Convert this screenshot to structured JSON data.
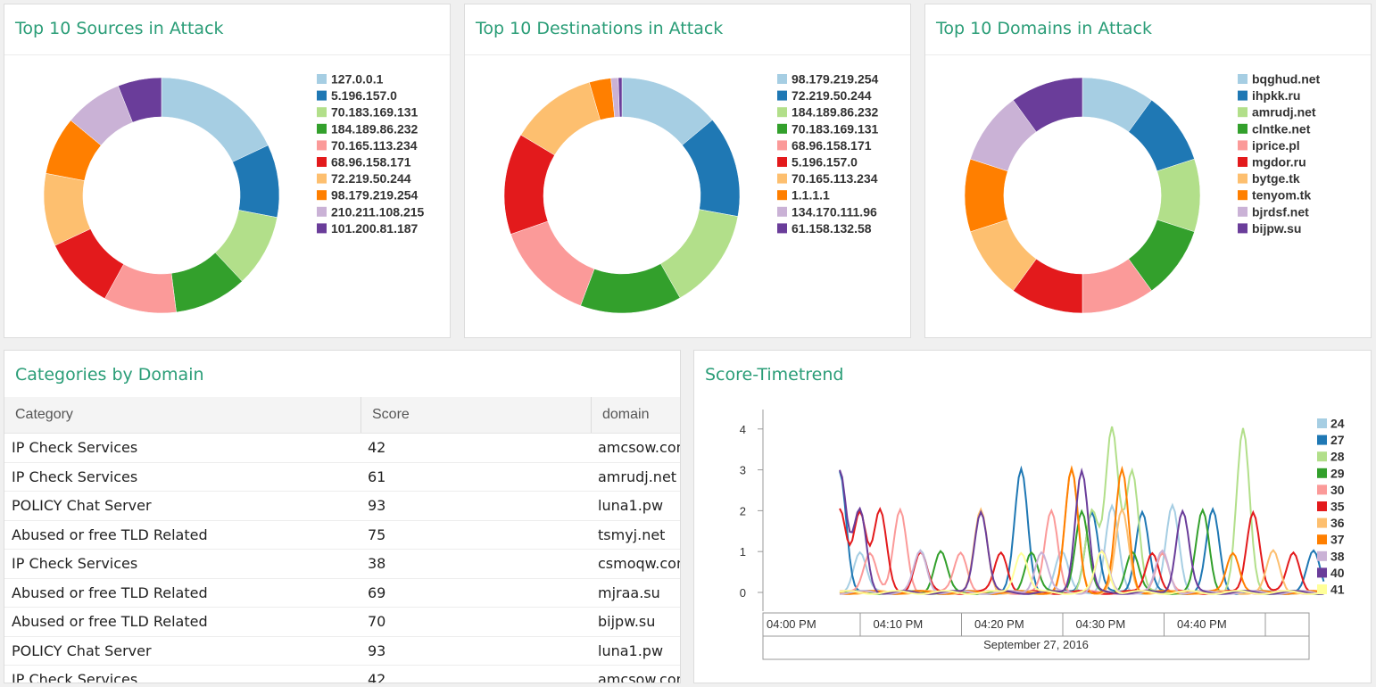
{
  "panels": {
    "sources": {
      "title": "Top 10 Sources in Attack"
    },
    "destinations": {
      "title": "Top 10 Destinations in Attack"
    },
    "domains": {
      "title": "Top 10 Domains in Attack"
    },
    "categories": {
      "title": "Categories by Domain"
    },
    "timetrend": {
      "title": "Score-Timetrend"
    }
  },
  "palette": [
    "#a6cee3",
    "#1f78b4",
    "#b2df8a",
    "#33a02c",
    "#fb9a99",
    "#e31a1c",
    "#fdbf6f",
    "#ff7f00",
    "#cab2d6",
    "#6a3d9a",
    "#ffff99"
  ],
  "chart_data": [
    {
      "type": "pie",
      "donut": true,
      "labels": [
        "127.0.0.1",
        "5.196.157.0",
        "70.183.169.131",
        "184.189.86.232",
        "70.165.113.234",
        "68.96.158.171",
        "72.219.50.244",
        "98.179.219.254",
        "210.211.108.215",
        "101.200.81.187"
      ],
      "values": [
        18,
        10,
        10,
        10,
        10,
        10,
        10,
        8,
        8,
        6
      ]
    },
    {
      "type": "pie",
      "donut": true,
      "labels": [
        "98.179.219.254",
        "72.219.50.244",
        "184.189.86.232",
        "70.183.169.131",
        "68.96.158.171",
        "5.196.157.0",
        "70.165.113.234",
        "1.1.1.1",
        "134.170.111.96",
        "61.158.132.58"
      ],
      "values": [
        14,
        14,
        14,
        14,
        14,
        14,
        12,
        3,
        1,
        0.5
      ]
    },
    {
      "type": "pie",
      "donut": true,
      "labels": [
        "bqghud.net",
        "ihpkk.ru",
        "amrudj.net",
        "clntke.net",
        "iprice.pl",
        "mgdor.ru",
        "bytge.tk",
        "tenyom.tk",
        "bjrdsf.net",
        "bijpw.su"
      ],
      "values": [
        10,
        10,
        10,
        10,
        10,
        10,
        10,
        10,
        10,
        10
      ]
    },
    {
      "type": "line",
      "x_ticks": [
        "04:00 PM",
        "04:10 PM",
        "04:20 PM",
        "04:30 PM",
        "04:40 PM"
      ],
      "x_date": "September 27, 2016",
      "y_ticks": [
        "0",
        "1",
        "2",
        "3",
        "4"
      ],
      "ylim": [
        0,
        4
      ],
      "series": [
        {
          "name": "24",
          "points": [
            [
              2,
              1
            ],
            [
              8,
              1
            ],
            [
              22,
              1
            ],
            [
              27,
              2.1
            ],
            [
              33,
              2.1
            ]
          ]
        },
        {
          "name": "27",
          "points": [
            [
              0,
              3
            ],
            [
              18,
              3
            ],
            [
              25,
              2
            ],
            [
              30,
              2
            ],
            [
              37,
              2
            ],
            [
              47,
              1
            ]
          ]
        },
        {
          "name": "28",
          "points": [
            [
              25,
              2
            ],
            [
              27,
              4
            ],
            [
              29,
              3
            ],
            [
              40,
              4
            ]
          ]
        },
        {
          "name": "29",
          "points": [
            [
              10,
              1
            ],
            [
              19,
              1
            ],
            [
              24,
              2
            ],
            [
              29,
              1
            ],
            [
              36,
              2
            ]
          ]
        },
        {
          "name": "30",
          "points": [
            [
              3,
              1
            ],
            [
              6,
              2
            ],
            [
              12,
              1
            ],
            [
              21,
              2
            ],
            [
              32,
              1
            ]
          ]
        },
        {
          "name": "35",
          "points": [
            [
              0,
              2
            ],
            [
              2,
              2
            ],
            [
              4,
              2
            ],
            [
              8,
              1
            ],
            [
              16,
              1
            ],
            [
              31,
              1
            ],
            [
              41,
              2
            ],
            [
              45,
              1
            ]
          ]
        },
        {
          "name": "36",
          "points": [
            [
              14,
              2
            ],
            [
              23,
              3
            ],
            [
              28,
              2
            ],
            [
              43,
              1
            ]
          ]
        },
        {
          "name": "37",
          "points": [
            [
              23,
              3
            ],
            [
              28,
              3
            ],
            [
              39,
              1
            ]
          ]
        },
        {
          "name": "38",
          "points": [
            [
              8,
              1
            ],
            [
              20,
              1
            ],
            [
              26,
              1
            ],
            [
              32,
              1
            ]
          ]
        },
        {
          "name": "40",
          "points": [
            [
              0,
              3
            ],
            [
              2,
              2
            ],
            [
              14,
              2
            ],
            [
              24,
              3
            ],
            [
              34,
              2
            ]
          ]
        },
        {
          "name": "41",
          "points": [
            [
              18,
              1
            ],
            [
              26,
              1
            ]
          ]
        }
      ]
    }
  ],
  "table": {
    "columns": [
      "Category",
      "Score",
      "domain"
    ],
    "rows": [
      [
        "IP Check Services",
        "42",
        "amcsow.com"
      ],
      [
        "IP Check Services",
        "61",
        "amrudj.net"
      ],
      [
        "POLICY Chat Server",
        "93",
        "luna1.pw"
      ],
      [
        "Abused or free TLD Related",
        "75",
        "tsmyj.net"
      ],
      [
        "IP Check Services",
        "38",
        "csmoqw.com"
      ],
      [
        "Abused or free TLD Related",
        "69",
        "mjraa.su"
      ],
      [
        "Abused or free TLD Related",
        "70",
        "bijpw.su"
      ],
      [
        "POLICY Chat Server",
        "93",
        "luna1.pw"
      ],
      [
        "IP Check Services",
        "42",
        "amcsow.com"
      ]
    ]
  }
}
